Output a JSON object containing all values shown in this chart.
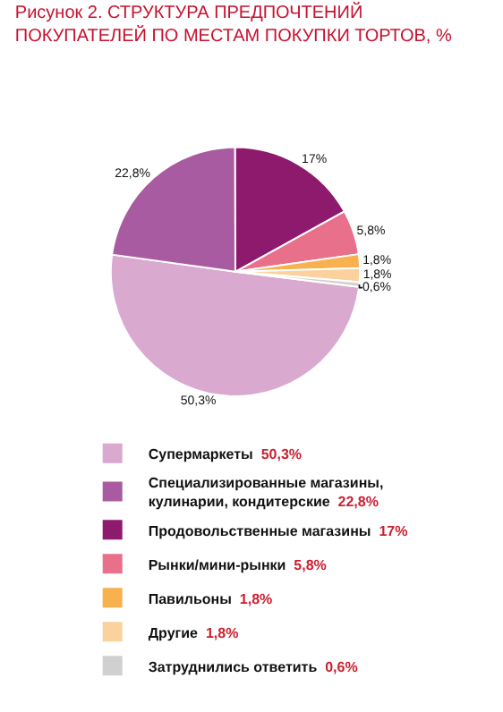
{
  "chart_data": {
    "type": "pie",
    "title": "Рисунок 2. СТРУКТУРА ПРЕДПОЧТЕНИЙ ПОКУПАТЕЛЕЙ ПО МЕСТАМ ПОКУПКИ ТОРТОВ, %",
    "categories": [
      "Супермаркеты",
      "Специализированные магазины, кулинарии, кондитерские",
      "Продовольственные магазины",
      "Рынки/мини-рынки",
      "Павильоны",
      "Другие",
      "Затруднились ответить"
    ],
    "values": [
      50.3,
      22.8,
      17,
      5.8,
      1.8,
      1.8,
      0.6
    ],
    "value_labels": [
      "50,3%",
      "22,8%",
      "17%",
      "5,8%",
      "1,8%",
      "1,8%",
      "0,6%"
    ],
    "colors": [
      "#d9a9cf",
      "#a85ba0",
      "#8e1a6e",
      "#e8708a",
      "#f9b04e",
      "#fbd19e",
      "#d0d0d0"
    ],
    "legend": "bottom"
  }
}
